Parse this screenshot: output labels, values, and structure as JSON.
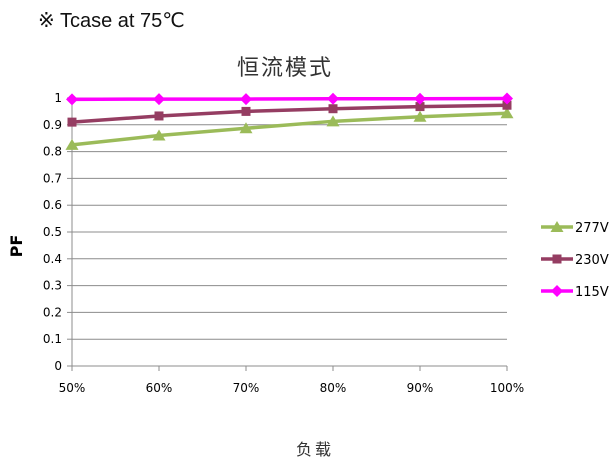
{
  "header": {
    "note": "※ Tcase at 75℃"
  },
  "chart_data": {
    "type": "line",
    "title": "恒流模式",
    "xlabel": "负载",
    "ylabel": "PF",
    "categories": [
      "50%",
      "60%",
      "70%",
      "80%",
      "90%",
      "100%"
    ],
    "ylim": [
      0,
      1
    ],
    "yticks": [
      "0",
      "0.1",
      "0.2",
      "0.3",
      "0.4",
      "0.5",
      "0.6",
      "0.7",
      "0.8",
      "0.9",
      "1"
    ],
    "grid": true,
    "legend_position": "right",
    "series": [
      {
        "name": "277V",
        "color": "#9BBB59",
        "marker": "triangle",
        "values": [
          0.825,
          0.86,
          0.887,
          0.913,
          0.93,
          0.943
        ]
      },
      {
        "name": "230V",
        "color": "#953D62",
        "marker": "square",
        "values": [
          0.91,
          0.933,
          0.95,
          0.96,
          0.968,
          0.973
        ]
      },
      {
        "name": "115V",
        "color": "#FF00FF",
        "marker": "diamond",
        "values": [
          0.995,
          0.996,
          0.996,
          0.997,
          0.997,
          0.998
        ]
      }
    ]
  }
}
